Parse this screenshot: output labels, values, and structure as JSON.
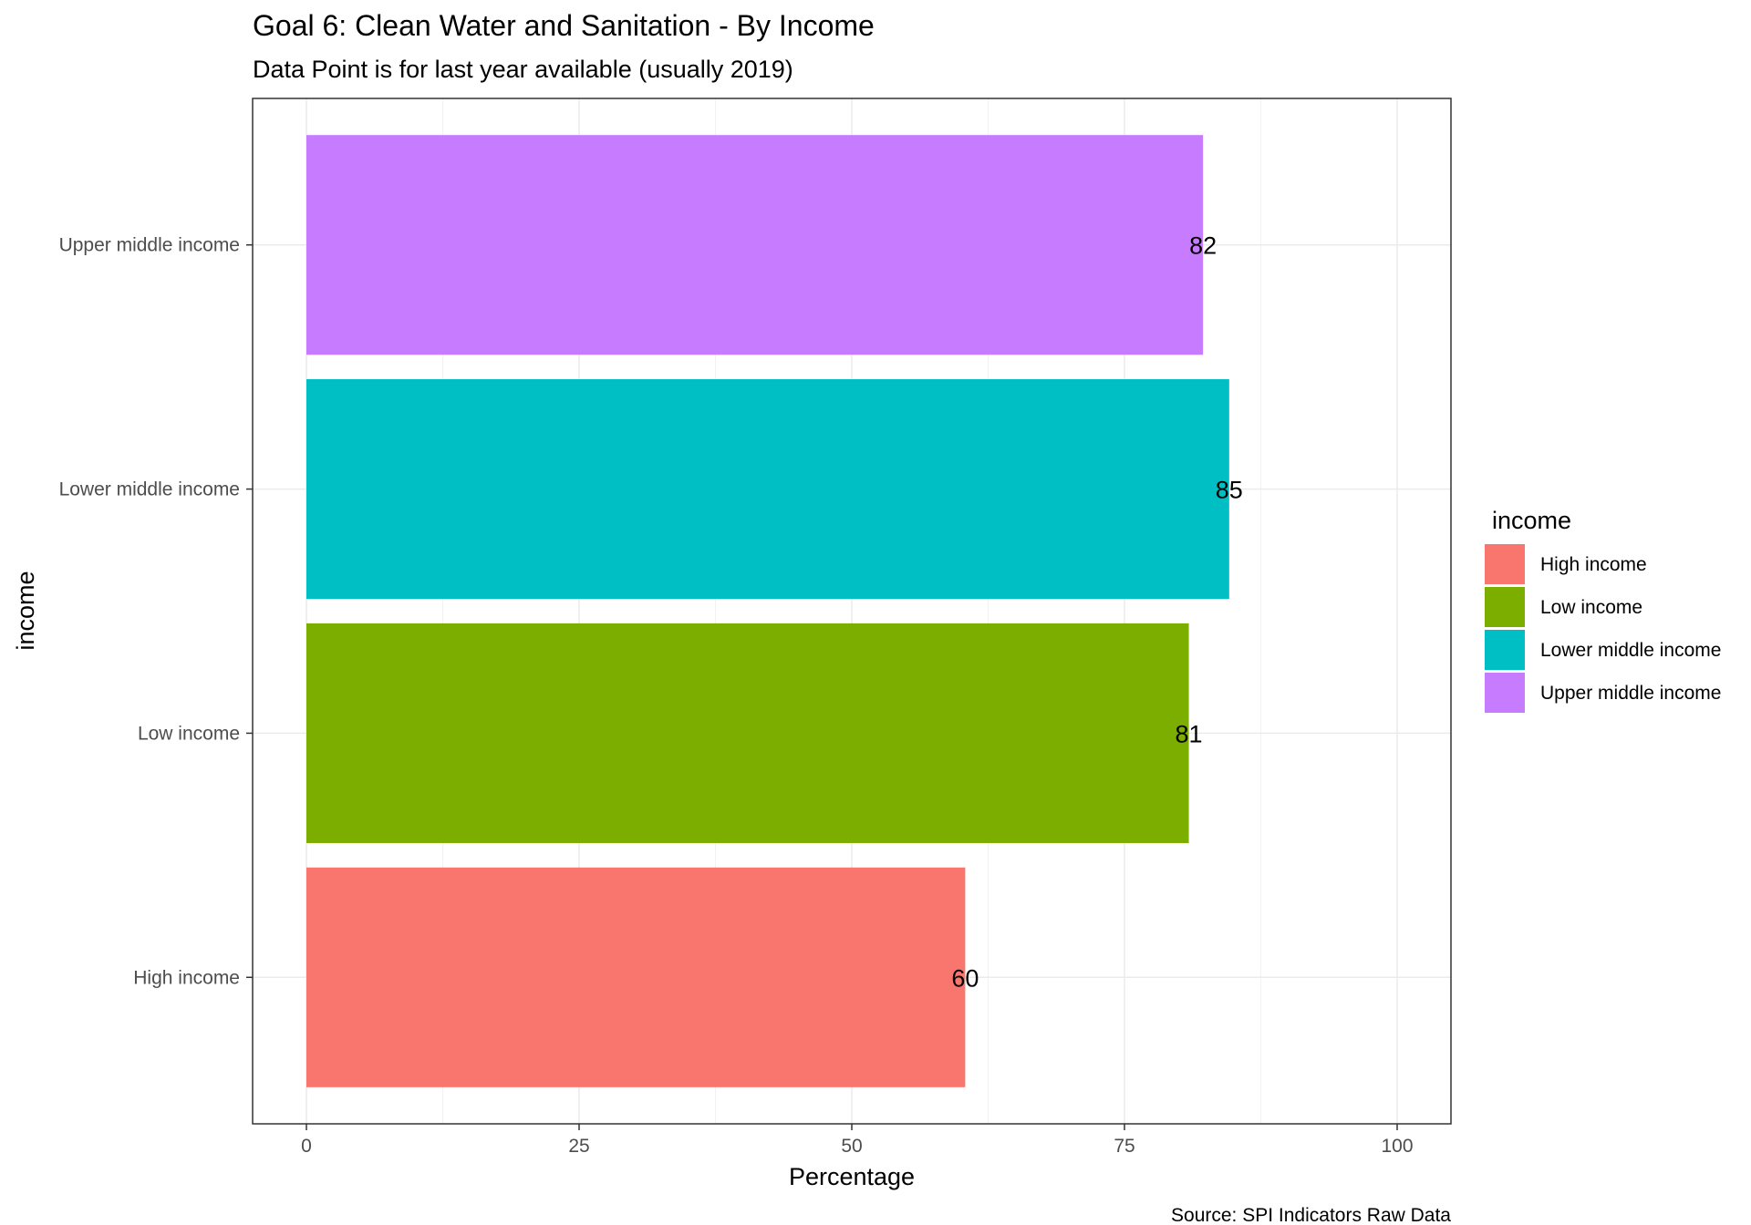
{
  "chart_data": {
    "type": "bar",
    "orientation": "horizontal",
    "title": "Goal 6: Clean Water and Sanitation - By Income",
    "subtitle": "Data Point is for last year available (usually 2019)",
    "xlabel": "Percentage",
    "ylabel": "income",
    "caption": "Source: SPI Indicators Raw Data",
    "xlim": [
      0,
      105
    ],
    "x_ticks": [
      0,
      25,
      50,
      75,
      100
    ],
    "categories": [
      "High income",
      "Low income",
      "Lower middle income",
      "Upper middle income"
    ],
    "values": [
      60.4,
      80.9,
      84.6,
      82.2
    ],
    "value_labels": [
      "60",
      "81",
      "85",
      "82"
    ],
    "colors": [
      "#F8766D",
      "#7CAE00",
      "#00BFC4",
      "#C77CFF"
    ],
    "legend": {
      "title": "income",
      "position": "right",
      "entries": [
        "High income",
        "Low income",
        "Lower middle income",
        "Upper middle income"
      ]
    },
    "grid": true,
    "theme": "bw"
  }
}
